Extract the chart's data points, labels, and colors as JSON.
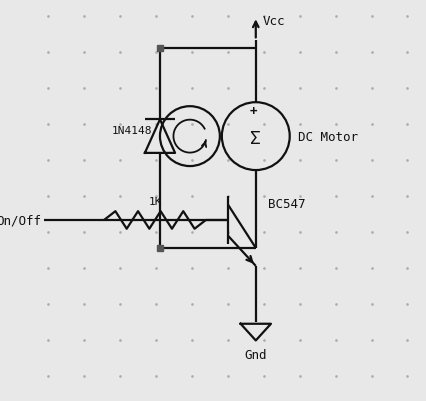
{
  "bg_color": "#e8e8e8",
  "line_color": "#111111",
  "dot_color": "#b0b0b0",
  "text_color": "#111111",
  "font_family": "monospace",
  "vcc_label": "Vcc",
  "gnd_label": "Gnd",
  "diode_label": "1N4148",
  "resistor_label": "1K",
  "transistor_label": "BC547",
  "motor_label": "DC Motor",
  "input_label": "On/Off",
  "xlim": [
    0,
    10
  ],
  "ylim": [
    0,
    10
  ]
}
